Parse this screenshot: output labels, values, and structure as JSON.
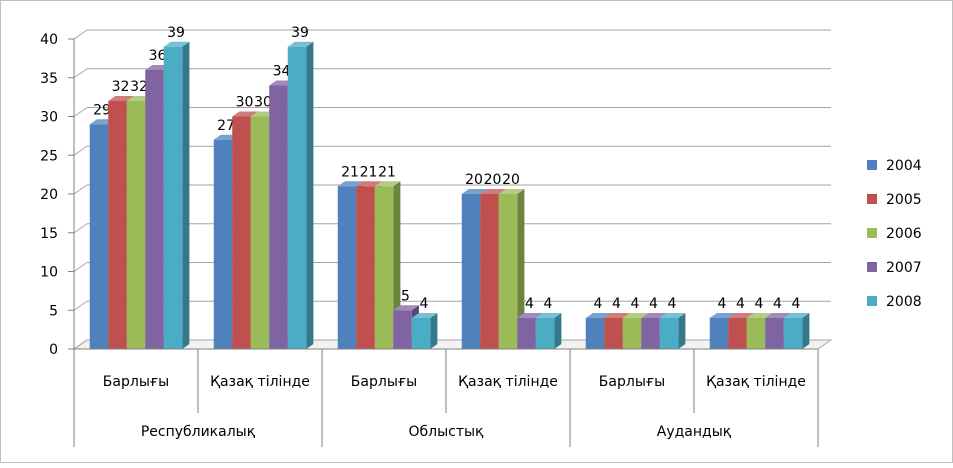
{
  "chart_data": {
    "type": "bar",
    "title": "",
    "xlabel": "",
    "ylabel": "",
    "ylim": [
      0,
      40
    ],
    "y_ticks": [
      0,
      5,
      10,
      15,
      20,
      25,
      30,
      35,
      40
    ],
    "grid": true,
    "legend_position": "right",
    "groups": [
      {
        "label": "Республикалық",
        "categories": [
          "Барлығы",
          "Қазақ тілінде"
        ]
      },
      {
        "label": "Облыстық",
        "categories": [
          "Барлығы",
          "Қазақ тілінде"
        ]
      },
      {
        "label": "Аудандық",
        "categories": [
          "Барлығы",
          "Қазақ тілінде"
        ]
      }
    ],
    "categories": [
      "Барлығы",
      "Қазақ тілінде",
      "Барлығы",
      "Қазақ тілінде",
      "Барлығы",
      "Қазақ тілінде"
    ],
    "series": [
      {
        "name": "2004",
        "color": "#4F81BD",
        "values": [
          29,
          27,
          21,
          20,
          4,
          4
        ]
      },
      {
        "name": "2005",
        "color": "#C0504D",
        "values": [
          32,
          30,
          21,
          20,
          4,
          4
        ]
      },
      {
        "name": "2006",
        "color": "#9BBB59",
        "values": [
          32,
          30,
          21,
          20,
          4,
          4
        ]
      },
      {
        "name": "2007",
        "color": "#8064A2",
        "values": [
          36,
          34,
          5,
          4,
          4,
          4
        ]
      },
      {
        "name": "2008",
        "color": "#4BACC6",
        "values": [
          39,
          39,
          4,
          4,
          4,
          4
        ]
      }
    ]
  }
}
